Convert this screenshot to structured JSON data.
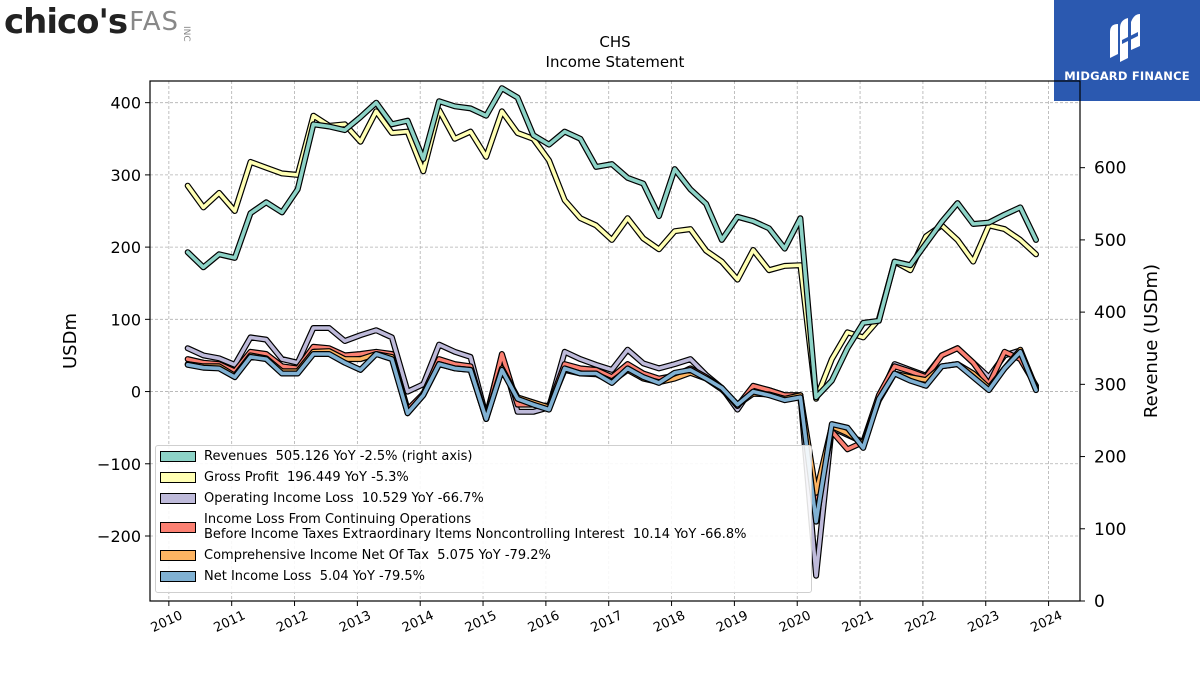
{
  "logos": {
    "left": {
      "brand": "chico's",
      "suffix": "FAS",
      "inc": "INC"
    },
    "right": {
      "name": "MIDGARD FINANCE"
    }
  },
  "chart_data": {
    "type": "line",
    "title": "CHS",
    "subtitle": "Income Statement",
    "ylabel": "USDm",
    "y2label": "Revenue (USDm)",
    "ylim": [
      -290,
      430
    ],
    "y2lim": [
      0,
      720
    ],
    "yticks": [
      -200,
      -100,
      0,
      100,
      200,
      300,
      400
    ],
    "y2ticks": [
      0,
      100,
      200,
      300,
      400,
      500,
      600
    ],
    "xlim": [
      2009.7,
      2024.5
    ],
    "xticks": [
      2010,
      2011,
      2012,
      2013,
      2014,
      2015,
      2016,
      2017,
      2018,
      2019,
      2020,
      2021,
      2022,
      2023,
      2024
    ],
    "grid": true,
    "legend_position": "lower-left",
    "colors": {
      "revenues": "#8dd3c7",
      "gross_profit": "#ffffb3",
      "operating": "#bebada",
      "pretax": "#fb8072",
      "comprehensive": "#fdb462",
      "net": "#80b1d3"
    },
    "quarters": [
      2010.3,
      2010.55,
      2010.8,
      2011.05,
      2011.3,
      2011.55,
      2011.8,
      2012.05,
      2012.3,
      2012.55,
      2012.8,
      2013.05,
      2013.3,
      2013.55,
      2013.8,
      2014.05,
      2014.3,
      2014.55,
      2014.8,
      2015.05,
      2015.3,
      2015.55,
      2015.8,
      2016.05,
      2016.3,
      2016.55,
      2016.8,
      2017.05,
      2017.3,
      2017.55,
      2017.8,
      2018.05,
      2018.3,
      2018.55,
      2018.8,
      2019.05,
      2019.3,
      2019.55,
      2019.8,
      2020.05,
      2020.3,
      2020.55,
      2020.8,
      2021.05,
      2021.3,
      2021.55,
      2021.8,
      2022.05,
      2022.3,
      2022.55,
      2022.8,
      2023.05,
      2023.3,
      2023.55,
      2023.8
    ],
    "series": [
      {
        "key": "revenues",
        "name": "Revenues",
        "axis": "right",
        "legend": "Revenues  505.126 YoY -2.5% (right axis)",
        "values": [
          483,
          462,
          480,
          475,
          537,
          552,
          538,
          570,
          660,
          657,
          652,
          670,
          690,
          660,
          665,
          612,
          692,
          685,
          682,
          672,
          710,
          697,
          645,
          632,
          650,
          640,
          601,
          605,
          586,
          578,
          533,
          598,
          570,
          550,
          500,
          532,
          526,
          516,
          488,
          530,
          282,
          305,
          350,
          385,
          388,
          470,
          465,
          495,
          525,
          551,
          522,
          524,
          535,
          545,
          500
        ]
      },
      {
        "key": "gross_profit",
        "name": "Gross Profit",
        "legend": "Gross Profit  196.449 YoY -5.3%",
        "values": [
          285,
          255,
          275,
          250,
          318,
          310,
          302,
          300,
          382,
          368,
          370,
          346,
          388,
          358,
          360,
          305,
          390,
          350,
          360,
          325,
          388,
          358,
          350,
          320,
          265,
          240,
          230,
          210,
          240,
          212,
          197,
          222,
          225,
          195,
          180,
          155,
          196,
          168,
          174,
          175,
          -10,
          45,
          82,
          75,
          100,
          180,
          168,
          215,
          230,
          210,
          180,
          230,
          225,
          210,
          190
        ]
      },
      {
        "key": "operating",
        "name": "Operating Income Loss",
        "legend": "Operating Income Loss  10.529 YoY -66.7%",
        "values": [
          60,
          50,
          46,
          37,
          75,
          72,
          45,
          40,
          88,
          88,
          70,
          78,
          85,
          75,
          0,
          10,
          65,
          55,
          48,
          -35,
          50,
          -28,
          -28,
          -22,
          55,
          45,
          37,
          30,
          58,
          39,
          32,
          38,
          45,
          23,
          5,
          -25,
          7,
          2,
          -5,
          -5,
          -255,
          -50,
          -60,
          -70,
          -10,
          38,
          30,
          22,
          50,
          60,
          40,
          20,
          50,
          57,
          5
        ]
      },
      {
        "key": "pretax",
        "name": "Income Loss From Continuing Operations Before Income Taxes Extraordinary Items Noncontrolling Interest",
        "legend": "Income Loss From Continuing Operations\nBefore Income Taxes Extraordinary Items Noncontrolling Interest  10.14 YoY -66.8%",
        "values": [
          45,
          40,
          38,
          28,
          55,
          52,
          35,
          32,
          62,
          60,
          50,
          52,
          55,
          52,
          -25,
          -3,
          45,
          38,
          35,
          -38,
          52,
          -18,
          -18,
          -20,
          38,
          32,
          30,
          20,
          38,
          25,
          18,
          22,
          32,
          20,
          5,
          -20,
          8,
          2,
          -5,
          -5,
          -160,
          -55,
          -80,
          -70,
          -5,
          35,
          28,
          20,
          50,
          60,
          40,
          10,
          55,
          45,
          8
        ]
      },
      {
        "key": "comprehensive",
        "name": "Comprehensive Income Net Of Tax",
        "legend": "Comprehensive Income Net Of Tax  5.075 YoY -79.2%",
        "values": [
          38,
          35,
          35,
          22,
          50,
          46,
          28,
          28,
          55,
          56,
          45,
          45,
          52,
          48,
          -30,
          -5,
          38,
          32,
          30,
          -38,
          32,
          -8,
          -15,
          -22,
          30,
          25,
          24,
          14,
          30,
          18,
          13,
          18,
          26,
          18,
          3,
          -18,
          -3,
          -4,
          -10,
          -5,
          -140,
          -48,
          -58,
          -72,
          -12,
          25,
          20,
          16,
          35,
          38,
          25,
          5,
          32,
          58,
          4
        ]
      },
      {
        "key": "net",
        "name": "Net Income Loss",
        "legend": "Net Income Loss  5.04 YoY -79.5%",
        "values": [
          37,
          33,
          32,
          20,
          48,
          45,
          25,
          25,
          52,
          52,
          40,
          30,
          52,
          45,
          -30,
          -5,
          38,
          32,
          30,
          -38,
          30,
          -10,
          -18,
          -25,
          32,
          25,
          25,
          12,
          32,
          20,
          12,
          26,
          30,
          18,
          5,
          -18,
          0,
          -5,
          -12,
          -8,
          -180,
          -45,
          -50,
          -78,
          -10,
          25,
          15,
          8,
          35,
          38,
          20,
          2,
          32,
          55,
          2
        ]
      }
    ]
  }
}
